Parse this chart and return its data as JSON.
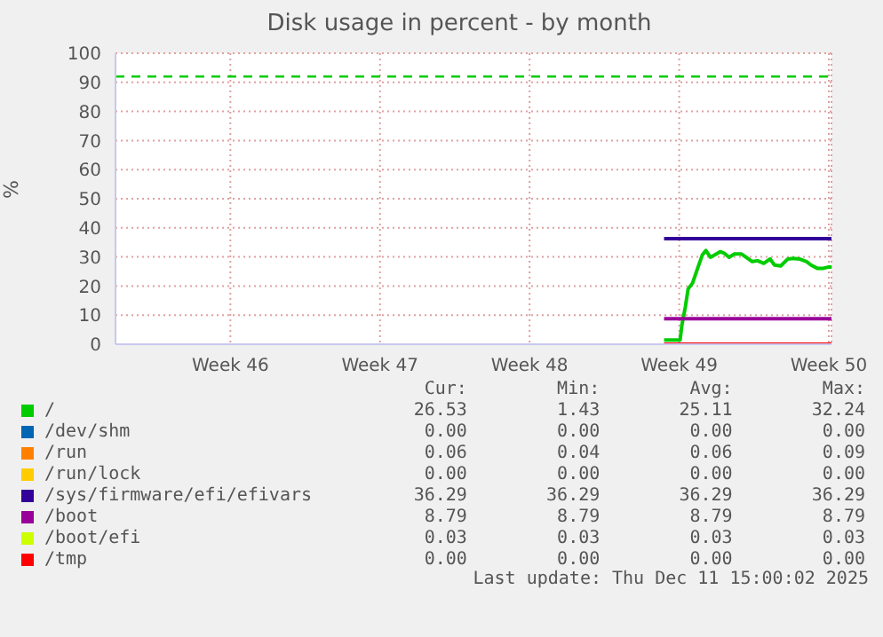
{
  "chart_data": {
    "type": "line",
    "title": "Disk usage in percent - by month",
    "ylabel": "%",
    "xlim": [
      "2025-11-08T03:00",
      "2025-12-11T15:00"
    ],
    "xticks": [
      {
        "value": "2025-11-13T12:00",
        "label": "Week 46"
      },
      {
        "value": "2025-11-20T12:00",
        "label": "Week 47"
      },
      {
        "value": "2025-11-27T12:00",
        "label": "Week 48"
      },
      {
        "value": "2025-12-04T12:00",
        "label": "Week 49"
      },
      {
        "value": "2025-12-11T12:00",
        "label": "Week 50"
      }
    ],
    "ylim": [
      0,
      100
    ],
    "yticks": [
      0,
      10,
      20,
      30,
      40,
      50,
      60,
      70,
      80,
      90,
      100
    ],
    "grid": true,
    "legend": "bottom",
    "ref_lines": [
      {
        "axis": "y",
        "value": 92,
        "color": "#00cc00",
        "line_style": "dashed"
      }
    ],
    "series": [
      {
        "name": "/",
        "color": "#00cc00",
        "x": [
          "2025-12-03T19:00",
          "2025-12-04T13:00",
          "2025-12-04T15:00",
          "2025-12-04T19:00",
          "2025-12-04T22:00",
          "2025-12-05T03:00",
          "2025-12-05T08:00",
          "2025-12-05T14:00",
          "2025-12-05T18:00",
          "2025-12-05T23:00",
          "2025-12-06T04:00",
          "2025-12-06T10:00",
          "2025-12-06T15:00",
          "2025-12-06T20:00",
          "2025-12-07T02:00",
          "2025-12-07T10:00",
          "2025-12-07T15:00",
          "2025-12-07T22:00",
          "2025-12-08T04:00",
          "2025-12-08T11:00",
          "2025-12-08T18:00",
          "2025-12-08T23:00",
          "2025-12-09T06:00",
          "2025-12-09T14:00",
          "2025-12-09T20:00",
          "2025-12-10T03:00",
          "2025-12-10T11:00",
          "2025-12-10T16:00",
          "2025-12-10T23:00",
          "2025-12-11T06:00",
          "2025-12-11T11:00",
          "2025-12-11T15:00"
        ],
        "values": [
          1.43,
          1.43,
          6.5,
          13,
          19,
          21,
          25.5,
          30.7,
          32.2,
          29.9,
          30.7,
          31.8,
          31.2,
          29.9,
          31,
          31,
          29.9,
          28.4,
          28.7,
          27.8,
          29.3,
          27.2,
          26.9,
          29.3,
          29.5,
          29.3,
          28.4,
          27.2,
          26.1,
          26.1,
          26.5,
          26.5
        ]
      },
      {
        "name": "/dev/shm",
        "color": "#0066b3",
        "values": [
          null
        ]
      },
      {
        "name": "/run",
        "color": "#ff8000",
        "values": [
          null
        ]
      },
      {
        "name": "/run/lock",
        "color": "#ffcc00",
        "values": [
          null
        ]
      },
      {
        "name": "/sys/firmware/efi/efivars",
        "color": "#330099",
        "x": [
          "2025-12-03T19:00",
          "2025-12-11T15:00"
        ],
        "values": [
          36.29,
          36.29
        ]
      },
      {
        "name": "/boot",
        "color": "#990099",
        "x": [
          "2025-12-03T19:00",
          "2025-12-11T15:00"
        ],
        "values": [
          8.79,
          8.79
        ]
      },
      {
        "name": "/boot/efi",
        "color": "#ccff00",
        "values": [
          null
        ]
      },
      {
        "name": "/tmp",
        "color": "#ff0000",
        "x": [
          "2025-12-03T19:00",
          "2025-12-11T15:00"
        ],
        "values": [
          0,
          0
        ]
      }
    ],
    "annotations": [
      "Cur:",
      "Min:",
      "Avg:",
      "Max:",
      "26.53",
      "1.43",
      "25.11",
      "32.24",
      "0.00",
      "0.00",
      "0.00",
      "0.00",
      "0.06",
      "0.04",
      "0.06",
      "0.09",
      "0.00",
      "0.00",
      "0.00",
      "0.00",
      "36.29",
      "36.29",
      "36.29",
      "36.29",
      "8.79",
      "8.79",
      "8.79",
      "8.79",
      "0.03",
      "0.03",
      "0.03",
      "0.03",
      "0.00",
      "0.00",
      "0.00",
      "0.00",
      "Last update: Thu Dec 11 15:00:02 2025"
    ]
  }
}
